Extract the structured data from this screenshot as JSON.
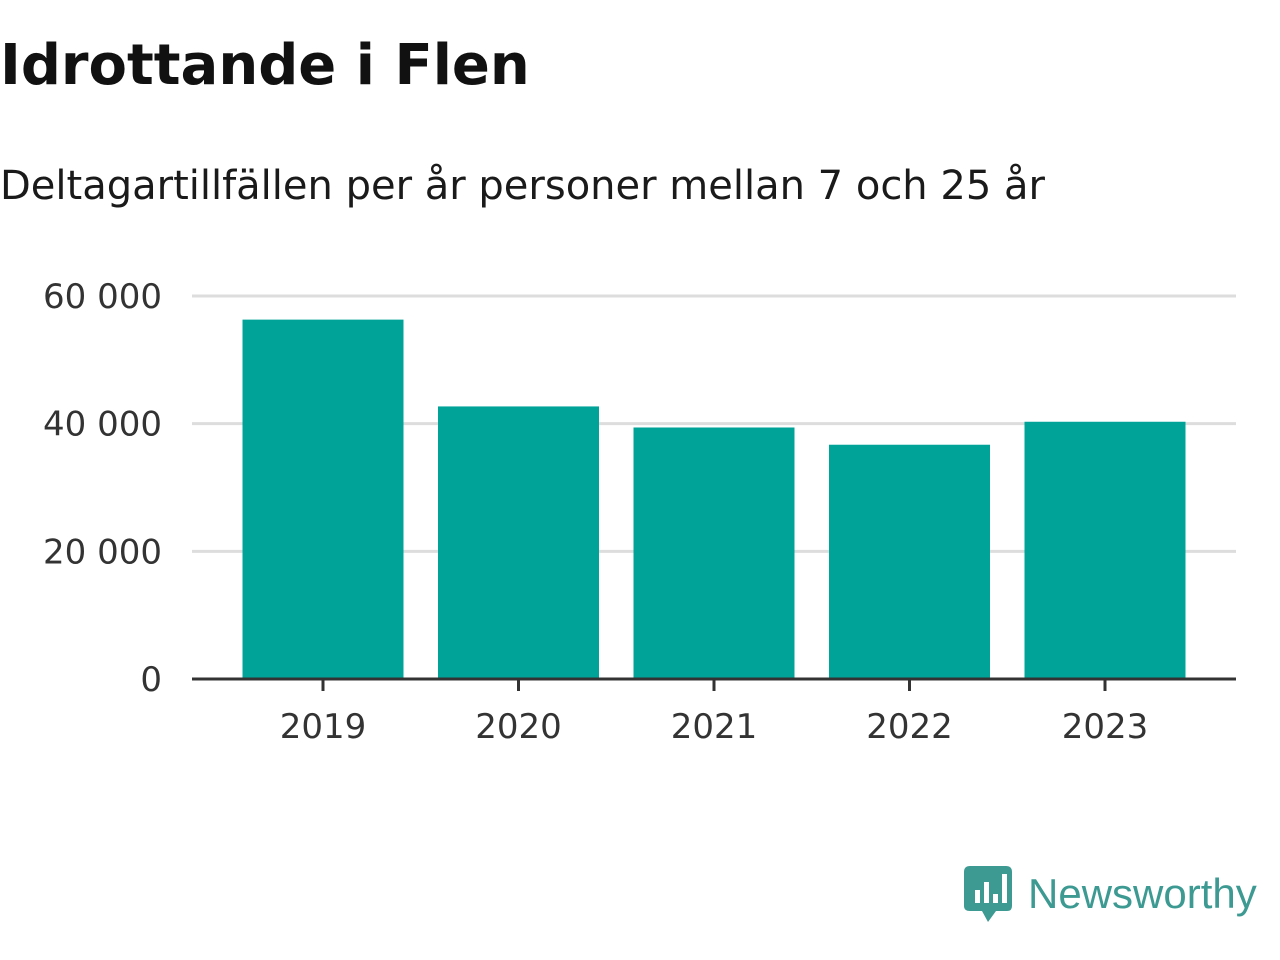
{
  "title": "Idrottande i Flen",
  "subtitle": "Deltagartillfällen per år personer mellan 7 och 25 år",
  "brand": {
    "name": "Newsworthy",
    "icon": "newsworthy-logo-icon",
    "color": "#3d9a92"
  },
  "colors": {
    "bar": "#00a398",
    "grid": "#dddddd",
    "axis": "#333333",
    "text": "#333333"
  },
  "chart_data": {
    "type": "bar",
    "categories": [
      "2019",
      "2020",
      "2021",
      "2022",
      "2023"
    ],
    "values": [
      56300,
      42700,
      39400,
      36700,
      40300
    ],
    "ylim": [
      0,
      60000
    ],
    "yticks": [
      0,
      20000,
      40000,
      60000
    ],
    "ytick_labels": [
      "0",
      "20 000",
      "40 000",
      "60 000"
    ],
    "grid": true,
    "xlabel": "",
    "ylabel": ""
  }
}
